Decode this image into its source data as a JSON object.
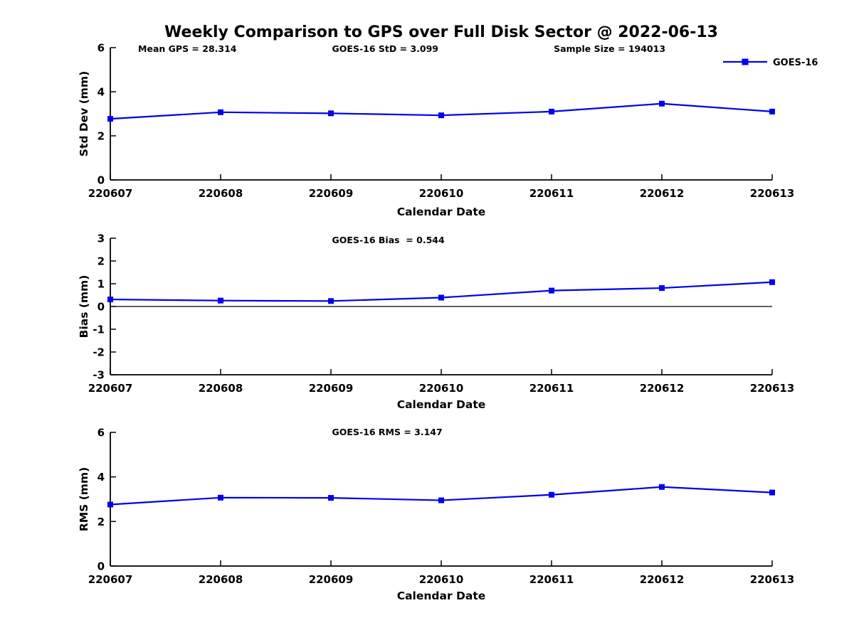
{
  "title": "Weekly Comparison to GPS over Full Disk Sector @ 2022-06-13",
  "colors": {
    "line": "#0000EE",
    "axis": "#000000",
    "text": "#000000",
    "zero_line": "#000000",
    "background": "#ffffff"
  },
  "legend": {
    "label": "GOES-16",
    "position": "top-right"
  },
  "chart_data": [
    {
      "type": "line",
      "categories": [
        "220607",
        "220608",
        "220609",
        "220610",
        "220611",
        "220612",
        "220613"
      ],
      "series": [
        {
          "name": "GOES-16",
          "values": [
            2.77,
            3.07,
            3.02,
            2.93,
            3.1,
            3.46,
            3.1
          ]
        }
      ],
      "xlabel": "Calendar Date",
      "ylabel": "Std Dev (mm)",
      "ylim": [
        0,
        6
      ],
      "yticks": [
        0,
        2,
        4,
        6
      ],
      "grid": false,
      "zero_line": false,
      "marker": "square",
      "annotations": [
        {
          "text": "Mean GPS = 28.314",
          "xfrac": 0.042
        },
        {
          "text": "GOES-16 StD = 3.099",
          "xfrac": 0.335
        },
        {
          "text": "Sample Size = 194013",
          "xfrac": 0.67
        }
      ],
      "show_legend": true
    },
    {
      "type": "line",
      "categories": [
        "220607",
        "220608",
        "220609",
        "220610",
        "220611",
        "220612",
        "220613"
      ],
      "series": [
        {
          "name": "GOES-16",
          "values": [
            0.31,
            0.26,
            0.24,
            0.39,
            0.7,
            0.81,
            1.07
          ]
        }
      ],
      "xlabel": "Calendar Date",
      "ylabel": "Bias (mm)",
      "ylim": [
        -3,
        3
      ],
      "yticks": [
        -3,
        -2,
        -1,
        0,
        1,
        2,
        3
      ],
      "grid": false,
      "zero_line": true,
      "marker": "square",
      "annotations": [
        {
          "text": "GOES-16 Bias  = 0.544",
          "xfrac": 0.335
        }
      ],
      "show_legend": false
    },
    {
      "type": "line",
      "categories": [
        "220607",
        "220608",
        "220609",
        "220610",
        "220611",
        "220612",
        "220613"
      ],
      "series": [
        {
          "name": "GOES-16",
          "values": [
            2.76,
            3.07,
            3.06,
            2.95,
            3.2,
            3.55,
            3.3
          ]
        }
      ],
      "xlabel": "Calendar Date",
      "ylabel": "RMS (mm)",
      "ylim": [
        0,
        6
      ],
      "yticks": [
        0,
        2,
        4,
        6
      ],
      "grid": false,
      "zero_line": false,
      "marker": "square",
      "annotations": [
        {
          "text": "GOES-16 RMS = 3.147",
          "xfrac": 0.335
        }
      ],
      "show_legend": false
    }
  ]
}
